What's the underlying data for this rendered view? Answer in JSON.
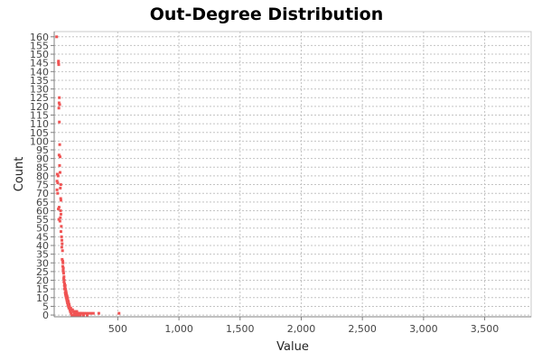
{
  "chart_data": {
    "type": "scatter",
    "title": "Out-Degree Distribution",
    "xlabel": "Value",
    "ylabel": "Count",
    "xlim": [
      -20,
      3880
    ],
    "ylim": [
      -1,
      163
    ],
    "xticks": [
      500,
      1000,
      1500,
      2000,
      2500,
      3000,
      3500
    ],
    "xtick_labels": [
      "500",
      "1,000",
      "1,500",
      "2,000",
      "2,500",
      "3,000",
      "3,500"
    ],
    "yticks": [
      0,
      5,
      10,
      15,
      20,
      25,
      30,
      35,
      40,
      45,
      50,
      55,
      60,
      65,
      70,
      75,
      80,
      85,
      90,
      95,
      100,
      105,
      110,
      115,
      120,
      125,
      130,
      135,
      140,
      145,
      150,
      155,
      160
    ],
    "ytick_labels": [
      "0",
      "5",
      "10",
      "15",
      "20",
      "25",
      "30",
      "35",
      "40",
      "45",
      "50",
      "55",
      "60",
      "65",
      "70",
      "75",
      "80",
      "85",
      "90",
      "95",
      "100",
      "105",
      "110",
      "115",
      "120",
      "125",
      "130",
      "135",
      "140",
      "145",
      "150",
      "155",
      "160"
    ],
    "grid": true,
    "marker_color": "#f05454",
    "points": [
      [
        0,
        160
      ],
      [
        15,
        146
      ],
      [
        15,
        145
      ],
      [
        17,
        144
      ],
      [
        22,
        125
      ],
      [
        20,
        122
      ],
      [
        25,
        121
      ],
      [
        18,
        119
      ],
      [
        22,
        111
      ],
      [
        25,
        98
      ],
      [
        20,
        92
      ],
      [
        28,
        91
      ],
      [
        24,
        86
      ],
      [
        28,
        82
      ],
      [
        5,
        81
      ],
      [
        12,
        80
      ],
      [
        3,
        77
      ],
      [
        9,
        76
      ],
      [
        34,
        75
      ],
      [
        30,
        73
      ],
      [
        3,
        72
      ],
      [
        8,
        70
      ],
      [
        33,
        67
      ],
      [
        35,
        66
      ],
      [
        20,
        62
      ],
      [
        14,
        61
      ],
      [
        32,
        60
      ],
      [
        35,
        58
      ],
      [
        30,
        56
      ],
      [
        18,
        55
      ],
      [
        27,
        54
      ],
      [
        38,
        51
      ],
      [
        35,
        48
      ],
      [
        40,
        45
      ],
      [
        43,
        43
      ],
      [
        45,
        41
      ],
      [
        42,
        39
      ],
      [
        48,
        37
      ],
      [
        45,
        32
      ],
      [
        50,
        31
      ],
      [
        52,
        30
      ],
      [
        50,
        28
      ],
      [
        55,
        27
      ],
      [
        53,
        26
      ],
      [
        55,
        25
      ],
      [
        57,
        24
      ],
      [
        60,
        22
      ],
      [
        58,
        21
      ],
      [
        62,
        20
      ],
      [
        60,
        19
      ],
      [
        65,
        18
      ],
      [
        63,
        17
      ],
      [
        70,
        17
      ],
      [
        68,
        16
      ],
      [
        72,
        15
      ],
      [
        65,
        15
      ],
      [
        75,
        14
      ],
      [
        70,
        13
      ],
      [
        78,
        13
      ],
      [
        72,
        12
      ],
      [
        80,
        12
      ],
      [
        75,
        11
      ],
      [
        85,
        11
      ],
      [
        78,
        10
      ],
      [
        88,
        10
      ],
      [
        82,
        9
      ],
      [
        90,
        9
      ],
      [
        85,
        8
      ],
      [
        95,
        8
      ],
      [
        88,
        7
      ],
      [
        98,
        7
      ],
      [
        92,
        6
      ],
      [
        102,
        6
      ],
      [
        96,
        5
      ],
      [
        105,
        5
      ],
      [
        100,
        4
      ],
      [
        110,
        4
      ],
      [
        115,
        4
      ],
      [
        108,
        3
      ],
      [
        120,
        3
      ],
      [
        125,
        3
      ],
      [
        130,
        3
      ],
      [
        112,
        2
      ],
      [
        135,
        2
      ],
      [
        140,
        2
      ],
      [
        150,
        2
      ],
      [
        160,
        2
      ],
      [
        165,
        2
      ],
      [
        118,
        1
      ],
      [
        145,
        1
      ],
      [
        155,
        1
      ],
      [
        170,
        1
      ],
      [
        180,
        1
      ],
      [
        190,
        1
      ],
      [
        200,
        1
      ],
      [
        210,
        1
      ],
      [
        225,
        1
      ],
      [
        240,
        1
      ],
      [
        260,
        1
      ],
      [
        280,
        1
      ],
      [
        300,
        1
      ],
      [
        345,
        1
      ],
      [
        510,
        1
      ],
      [
        125,
        0
      ],
      [
        135,
        0
      ],
      [
        150,
        0
      ],
      [
        165,
        0
      ],
      [
        180,
        0
      ],
      [
        195,
        0
      ],
      [
        220,
        0
      ],
      [
        250,
        0
      ]
    ]
  }
}
